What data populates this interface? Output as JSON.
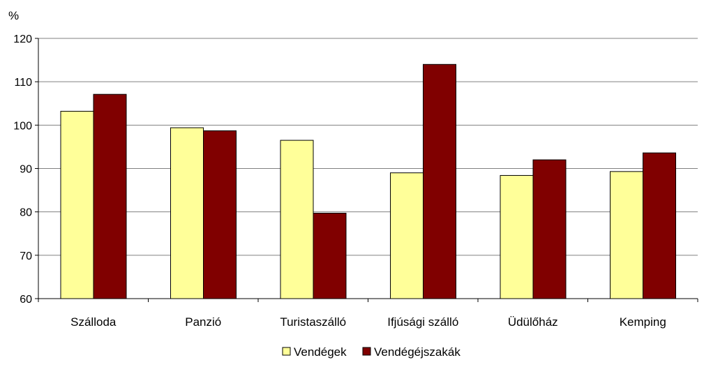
{
  "chart_data": {
    "type": "bar",
    "unit_label": "%",
    "categories": [
      "Szálloda",
      "Panzió",
      "Turistaszálló",
      "Ifjúsági szálló",
      "Üdülőház",
      "Kemping"
    ],
    "series": [
      {
        "name": "Vendégek",
        "color": "#ffff99",
        "values": [
          103.2,
          99.4,
          96.5,
          89.0,
          88.4,
          89.3
        ]
      },
      {
        "name": "Vendégéjszakák",
        "color": "#800000",
        "values": [
          107.1,
          98.7,
          79.7,
          114.0,
          92.0,
          93.6
        ]
      }
    ],
    "ylim": [
      60,
      120
    ],
    "yticks": [
      60,
      70,
      80,
      90,
      100,
      110,
      120
    ],
    "grid": true,
    "legend_position": "bottom-center"
  }
}
